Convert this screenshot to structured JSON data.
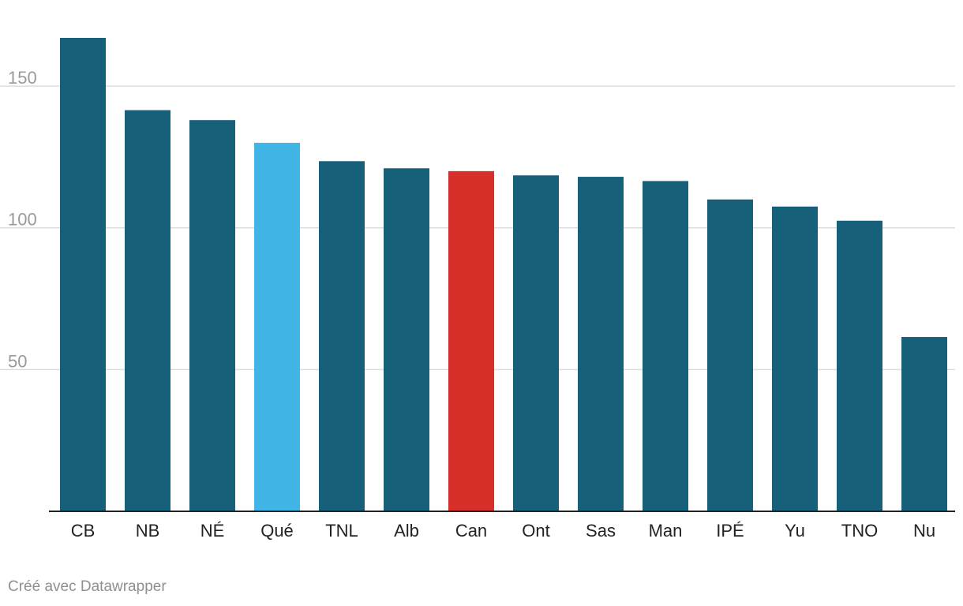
{
  "chart_data": {
    "type": "bar",
    "title": "",
    "xlabel": "",
    "ylabel": "",
    "categories": [
      "CB",
      "NB",
      "NÉ",
      "Qué",
      "TNL",
      "Alb",
      "Can",
      "Ont",
      "Sas",
      "Man",
      "IPÉ",
      "Yu",
      "TNO",
      "Nu"
    ],
    "values": [
      167,
      141.5,
      138,
      130,
      123.5,
      121,
      120,
      118.5,
      118,
      116.5,
      110,
      107.5,
      102.5,
      61.5
    ],
    "bar_colors": [
      "#17607a",
      "#17607a",
      "#17607a",
      "#41b6e6",
      "#17607a",
      "#17607a",
      "#d7302b",
      "#17607a",
      "#17607a",
      "#17607a",
      "#17607a",
      "#17607a",
      "#17607a",
      "#17607a"
    ],
    "ylim": [
      0,
      167
    ],
    "yticks": [
      50,
      100,
      150
    ],
    "ytick_labels": [
      "50",
      "100",
      "150"
    ],
    "grid": true
  },
  "footer": {
    "credit": "Créé avec Datawrapper"
  }
}
